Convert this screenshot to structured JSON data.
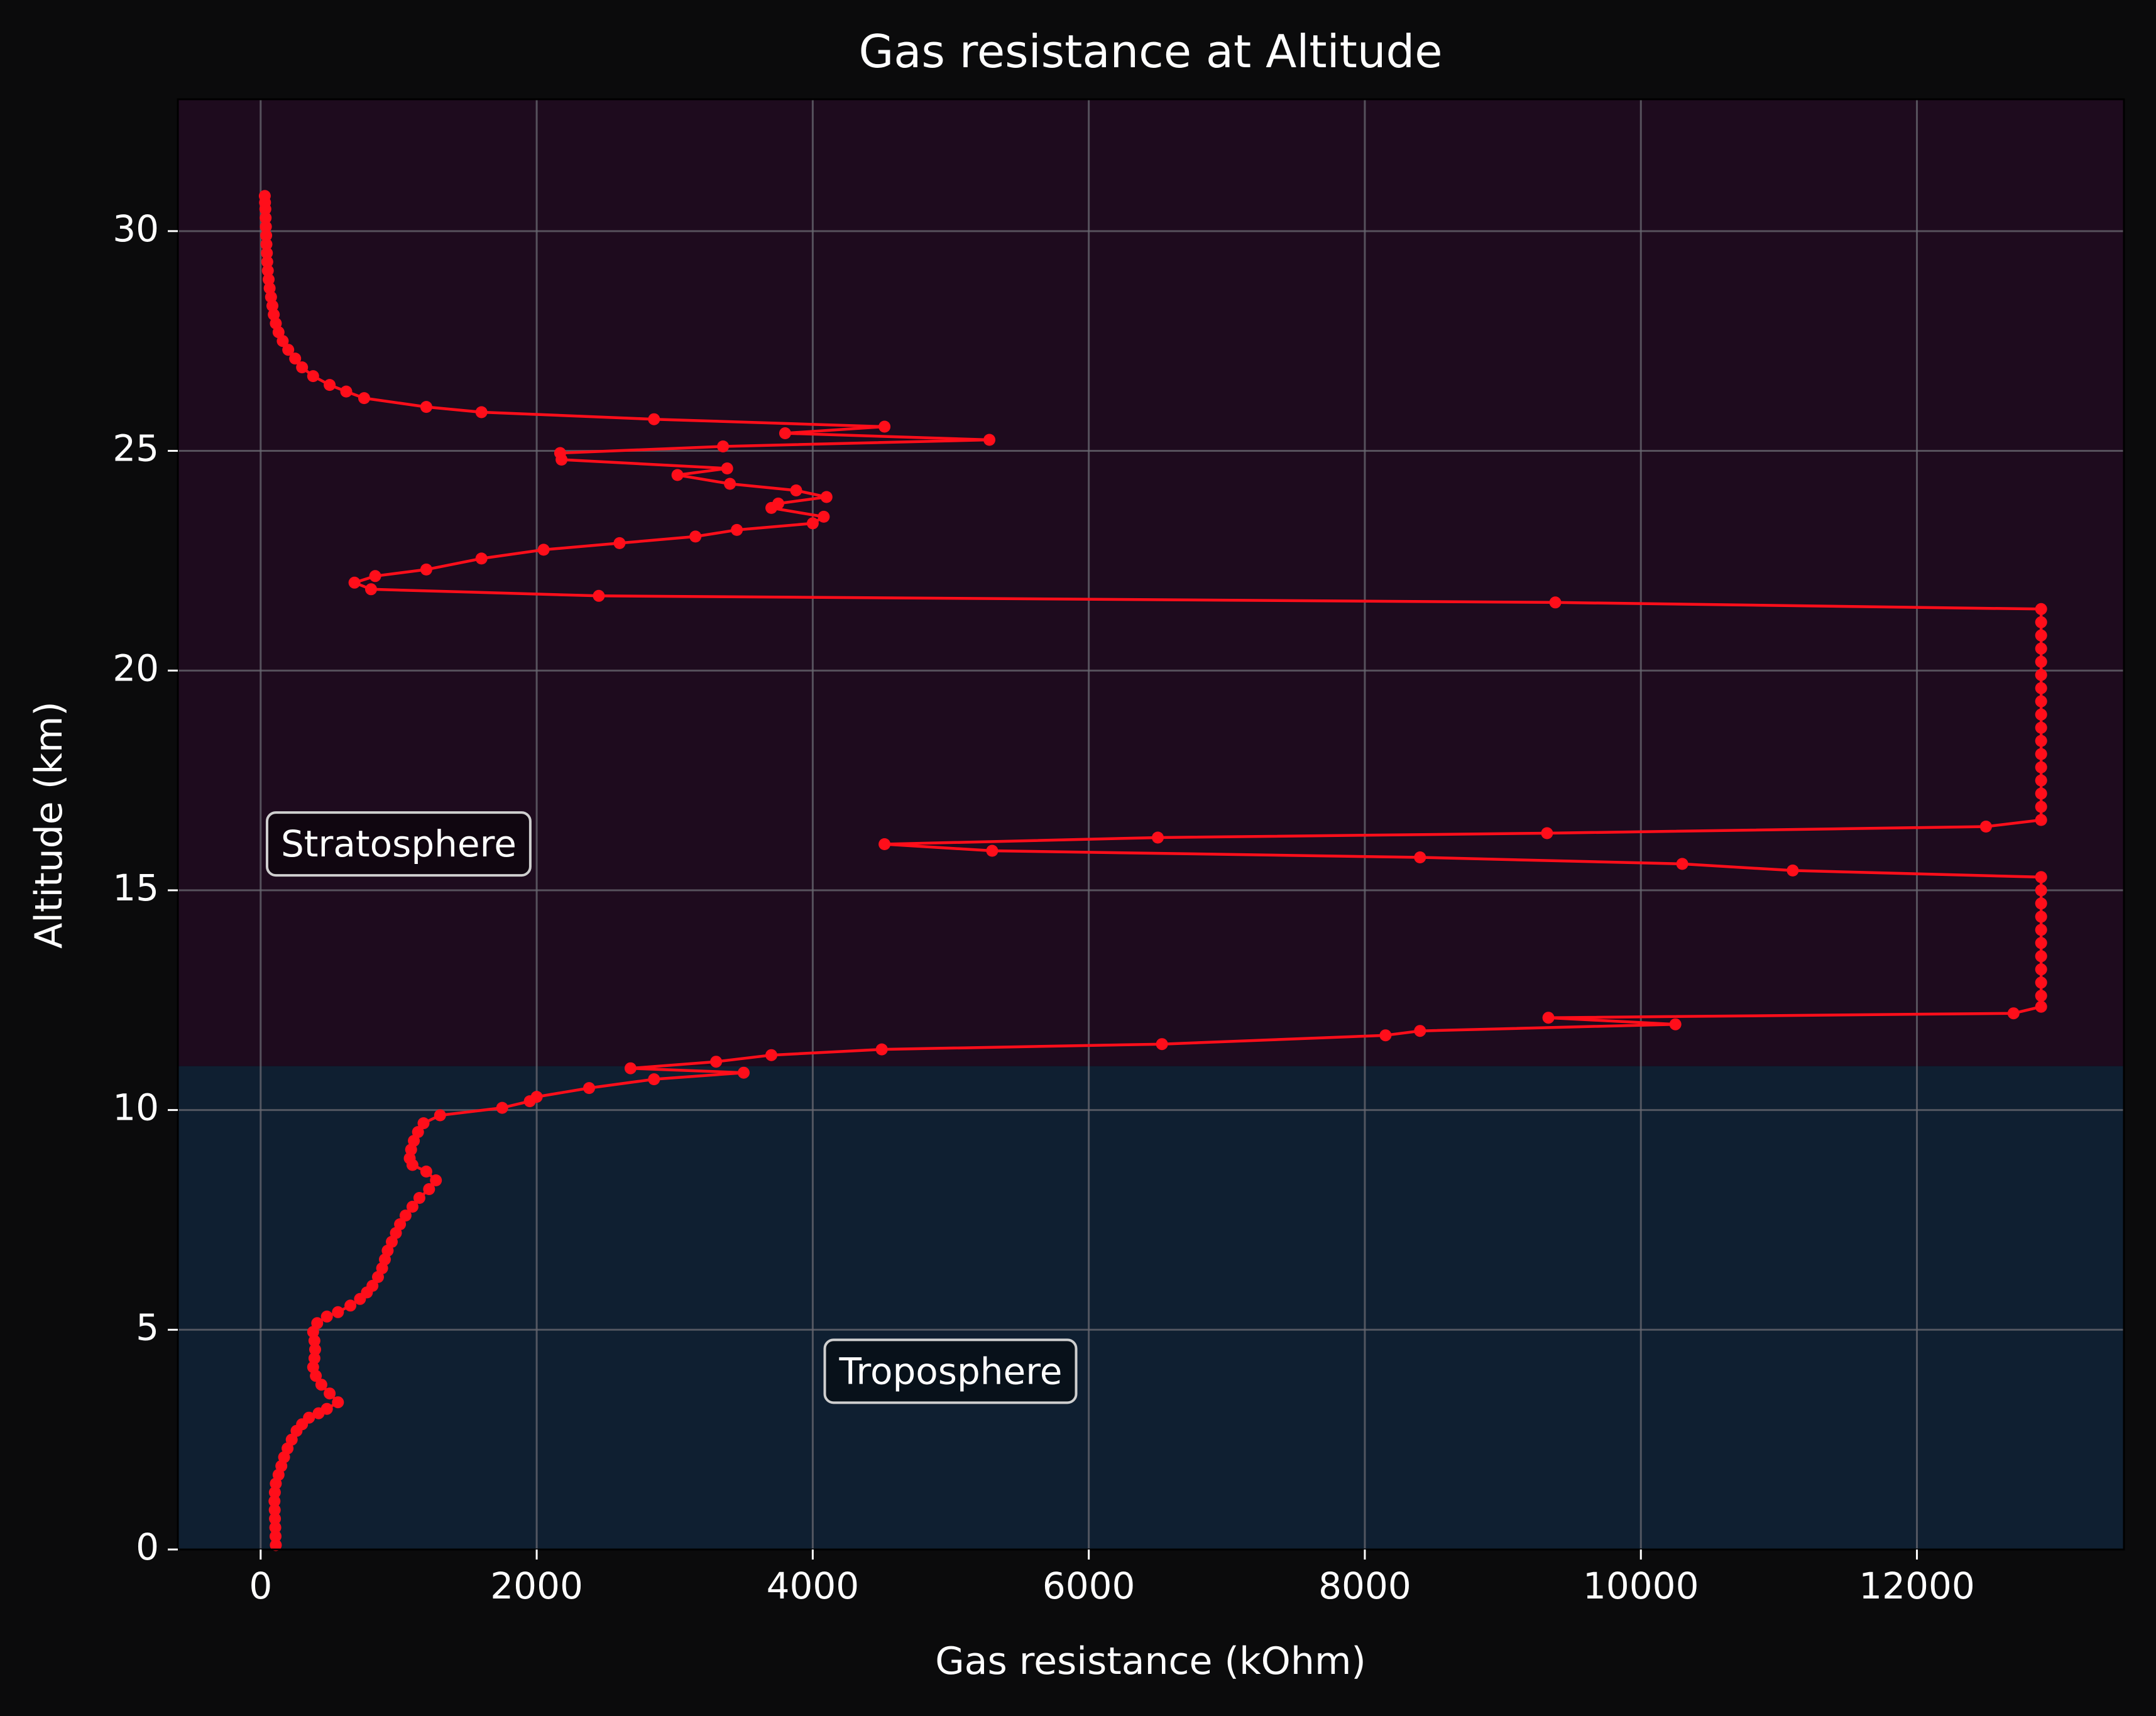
{
  "colors": {
    "background": "#0b0b0c",
    "stratosphere_band": "#1e0b1e",
    "troposphere_band": "#0f1f31",
    "series": "#ff0e1a",
    "grid": "#6a6a72",
    "text": "#ffffff",
    "label_box_fill": "#000000",
    "label_box_edge": "#cfcfcf"
  },
  "chart_data": {
    "type": "line",
    "title": "Gas resistance at Altitude",
    "xlabel": "Gas resistance (kOhm)",
    "ylabel": "Altitude (km)",
    "xlim": [
      -600,
      13500
    ],
    "ylim": [
      0,
      33
    ],
    "xticks": [
      0,
      2000,
      4000,
      6000,
      8000,
      10000,
      12000
    ],
    "yticks": [
      0,
      5,
      10,
      15,
      20,
      25,
      30
    ],
    "grid": true,
    "markers": true,
    "regions": [
      {
        "label": "Troposphere",
        "y_range": [
          0,
          11
        ],
        "label_at": [
          5000,
          4
        ]
      },
      {
        "label": "Stratosphere",
        "y_range": [
          11,
          33
        ],
        "label_at": [
          1000,
          16
        ]
      }
    ],
    "series": [
      {
        "points": [
          [
            110,
            0.1
          ],
          [
            108,
            0.3
          ],
          [
            106,
            0.5
          ],
          [
            104,
            0.7
          ],
          [
            102,
            0.9
          ],
          [
            100,
            1.1
          ],
          [
            103,
            1.3
          ],
          [
            110,
            1.5
          ],
          [
            130,
            1.7
          ],
          [
            150,
            1.9
          ],
          [
            170,
            2.1
          ],
          [
            195,
            2.3
          ],
          [
            225,
            2.5
          ],
          [
            260,
            2.7
          ],
          [
            300,
            2.85
          ],
          [
            350,
            3.0
          ],
          [
            420,
            3.1
          ],
          [
            480,
            3.2
          ],
          [
            560,
            3.35
          ],
          [
            500,
            3.55
          ],
          [
            440,
            3.75
          ],
          [
            400,
            3.95
          ],
          [
            380,
            4.15
          ],
          [
            390,
            4.35
          ],
          [
            395,
            4.55
          ],
          [
            390,
            4.75
          ],
          [
            380,
            4.95
          ],
          [
            410,
            5.15
          ],
          [
            480,
            5.3
          ],
          [
            560,
            5.4
          ],
          [
            650,
            5.55
          ],
          [
            720,
            5.7
          ],
          [
            770,
            5.85
          ],
          [
            810,
            6.0
          ],
          [
            850,
            6.2
          ],
          [
            880,
            6.4
          ],
          [
            900,
            6.6
          ],
          [
            920,
            6.8
          ],
          [
            950,
            7.0
          ],
          [
            980,
            7.2
          ],
          [
            1010,
            7.4
          ],
          [
            1050,
            7.6
          ],
          [
            1100,
            7.8
          ],
          [
            1150,
            8.0
          ],
          [
            1220,
            8.2
          ],
          [
            1270,
            8.4
          ],
          [
            1200,
            8.6
          ],
          [
            1100,
            8.75
          ],
          [
            1080,
            8.9
          ],
          [
            1090,
            9.1
          ],
          [
            1110,
            9.3
          ],
          [
            1140,
            9.5
          ],
          [
            1180,
            9.7
          ],
          [
            1300,
            9.88
          ],
          [
            1750,
            10.05
          ],
          [
            1950,
            10.2
          ],
          [
            2000,
            10.3
          ],
          [
            2380,
            10.5
          ],
          [
            2850,
            10.7
          ],
          [
            3500,
            10.85
          ],
          [
            2680,
            10.95
          ],
          [
            3300,
            11.1
          ],
          [
            3700,
            11.25
          ],
          [
            4500,
            11.38
          ],
          [
            6530,
            11.5
          ],
          [
            8150,
            11.7
          ],
          [
            8400,
            11.8
          ],
          [
            10250,
            11.95
          ],
          [
            9330,
            12.1
          ],
          [
            12700,
            12.2
          ],
          [
            12900,
            12.35
          ],
          [
            12900,
            12.6
          ],
          [
            12900,
            12.9
          ],
          [
            12900,
            13.2
          ],
          [
            12900,
            13.5
          ],
          [
            12900,
            13.8
          ],
          [
            12900,
            14.1
          ],
          [
            12900,
            14.4
          ],
          [
            12900,
            14.7
          ],
          [
            12900,
            15.0
          ],
          [
            12900,
            15.3
          ],
          [
            11100,
            15.45
          ],
          [
            10300,
            15.6
          ],
          [
            8400,
            15.75
          ],
          [
            5300,
            15.9
          ],
          [
            4520,
            16.05
          ],
          [
            6500,
            16.2
          ],
          [
            9320,
            16.3
          ],
          [
            12500,
            16.45
          ],
          [
            12900,
            16.6
          ],
          [
            12900,
            16.9
          ],
          [
            12900,
            17.2
          ],
          [
            12900,
            17.5
          ],
          [
            12900,
            17.8
          ],
          [
            12900,
            18.1
          ],
          [
            12900,
            18.4
          ],
          [
            12900,
            18.7
          ],
          [
            12900,
            19.0
          ],
          [
            12900,
            19.3
          ],
          [
            12900,
            19.6
          ],
          [
            12900,
            19.9
          ],
          [
            12900,
            20.2
          ],
          [
            12900,
            20.5
          ],
          [
            12900,
            20.8
          ],
          [
            12900,
            21.1
          ],
          [
            12900,
            21.4
          ],
          [
            9380,
            21.55
          ],
          [
            2450,
            21.7
          ],
          [
            800,
            21.85
          ],
          [
            680,
            22.0
          ],
          [
            830,
            22.15
          ],
          [
            1200,
            22.3
          ],
          [
            1600,
            22.55
          ],
          [
            2050,
            22.75
          ],
          [
            2600,
            22.9
          ],
          [
            3150,
            23.05
          ],
          [
            3450,
            23.2
          ],
          [
            4000,
            23.35
          ],
          [
            4080,
            23.5
          ],
          [
            3700,
            23.7
          ],
          [
            3750,
            23.8
          ],
          [
            4100,
            23.95
          ],
          [
            3880,
            24.1
          ],
          [
            3400,
            24.25
          ],
          [
            3020,
            24.45
          ],
          [
            3380,
            24.6
          ],
          [
            2180,
            24.8
          ],
          [
            2170,
            24.95
          ],
          [
            3350,
            25.1
          ],
          [
            5280,
            25.25
          ],
          [
            3800,
            25.4
          ],
          [
            4520,
            25.55
          ],
          [
            2850,
            25.72
          ],
          [
            1600,
            25.88
          ],
          [
            1200,
            26.0
          ],
          [
            750,
            26.2
          ],
          [
            620,
            26.35
          ],
          [
            500,
            26.5
          ],
          [
            380,
            26.7
          ],
          [
            300,
            26.9
          ],
          [
            250,
            27.1
          ],
          [
            200,
            27.3
          ],
          [
            160,
            27.5
          ],
          [
            130,
            27.7
          ],
          [
            110,
            27.9
          ],
          [
            95,
            28.1
          ],
          [
            85,
            28.3
          ],
          [
            75,
            28.5
          ],
          [
            65,
            28.7
          ],
          [
            58,
            28.9
          ],
          [
            52,
            29.1
          ],
          [
            48,
            29.3
          ],
          [
            45,
            29.5
          ],
          [
            42,
            29.7
          ],
          [
            40,
            29.9
          ],
          [
            38,
            30.1
          ],
          [
            36,
            30.3
          ],
          [
            34,
            30.5
          ],
          [
            32,
            30.65
          ],
          [
            30,
            30.8
          ]
        ]
      }
    ]
  }
}
